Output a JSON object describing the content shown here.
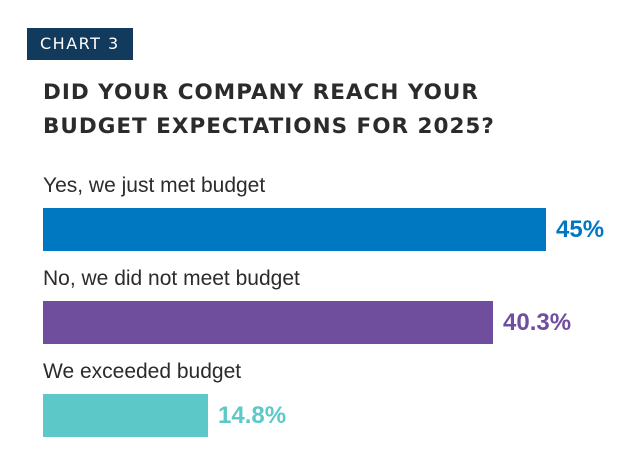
{
  "chart_tag": "CHART 3",
  "title_lines": [
    "DID YOUR COMPANY REACH YOUR",
    "BUDGET EXPECTATIONS FOR 2025?"
  ],
  "chart_data": {
    "type": "bar",
    "orientation": "horizontal",
    "title": "DID YOUR COMPANY REACH YOUR BUDGET EXPECTATIONS FOR 2025?",
    "categories": [
      "Yes, we just met budget",
      "No, we did not meet budget",
      "We exceeded budget"
    ],
    "values": [
      45,
      40.3,
      14.8
    ],
    "value_labels": [
      "45%",
      "40.3%",
      "14.8%"
    ],
    "colors": [
      "#0077c1",
      "#6f4e9e",
      "#5cc8c8"
    ],
    "xlim": [
      0,
      45
    ],
    "xlabel": "",
    "ylabel": "",
    "grid": false
  }
}
